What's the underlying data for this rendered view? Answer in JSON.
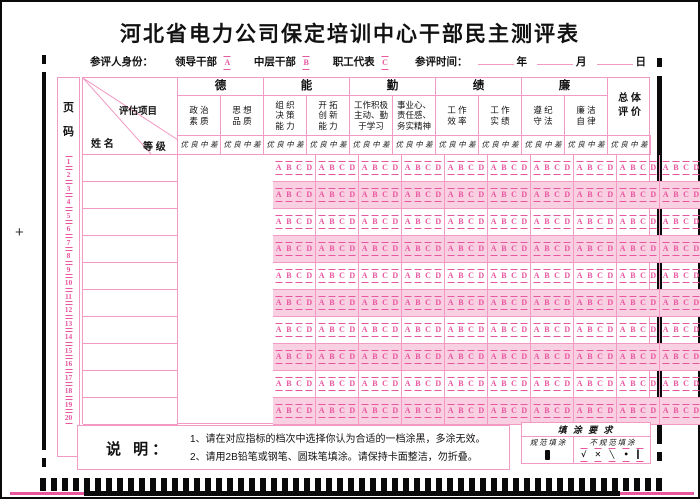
{
  "title": "河北省电力公司保定培训中心干部民主测评表",
  "identity": {
    "label": "参评人身份：",
    "options": [
      {
        "label": "领导干部",
        "bubble": "A"
      },
      {
        "label": "中层干部",
        "bubble": "B"
      },
      {
        "label": "职工代表",
        "bubble": "C"
      }
    ],
    "time": {
      "label": "参评时间：",
      "units": [
        "年",
        "月",
        "日"
      ]
    }
  },
  "table": {
    "page_col": {
      "header": [
        "页",
        "码"
      ],
      "numbers": [
        "1",
        "2",
        "3",
        "4",
        "5",
        "6",
        "7",
        "8",
        "9",
        "10",
        "11",
        "12",
        "13",
        "14",
        "15",
        "16",
        "17",
        "18",
        "19",
        "20"
      ]
    },
    "corner": {
      "project": "评估项目",
      "name": "姓  名",
      "grade": "等 级"
    },
    "groups": [
      "德",
      "能",
      "勤",
      "绩",
      "廉"
    ],
    "overall": [
      "总 体",
      "评 价"
    ],
    "criteria": [
      [
        "政 治",
        "素 质"
      ],
      [
        "思 想",
        "品 质"
      ],
      [
        "组 织",
        "决 策",
        "能 力"
      ],
      [
        "开 拓",
        "创 新",
        "能 力"
      ],
      [
        "工作积极",
        "主动、勤",
        "于学习"
      ],
      [
        "事业心、",
        "责任感、",
        "务实精神"
      ],
      [
        "工 作",
        "效 率"
      ],
      [
        "工 作",
        "实 绩"
      ],
      [
        "遵 纪",
        "守 法"
      ],
      [
        "廉 洁",
        "自 律"
      ]
    ],
    "scale": [
      "优",
      "良",
      "中",
      "差"
    ],
    "bubbles": [
      "A",
      "B",
      "C",
      "D"
    ],
    "rows": 10
  },
  "notes": {
    "label": "说 明：",
    "lines": [
      "1、请在对应指标的档次中选择你认为合适的一档涂黑，多涂无效。",
      "2、请用2B铅笔或钢笔、圆珠笔填涂。请保持卡面整洁，勿折叠。"
    ]
  },
  "fill_req": {
    "title": "填 涂 要 求",
    "good": "规 范 填 涂",
    "bad": "不 规 范 填 涂",
    "bad_marks": [
      "√",
      "✕",
      "╲",
      "•",
      "▎"
    ]
  },
  "colors": {
    "pink": "#e8569e",
    "border_pink": "#f29ac3",
    "row_pink": "#f9d0e2",
    "ink": "#111111"
  }
}
